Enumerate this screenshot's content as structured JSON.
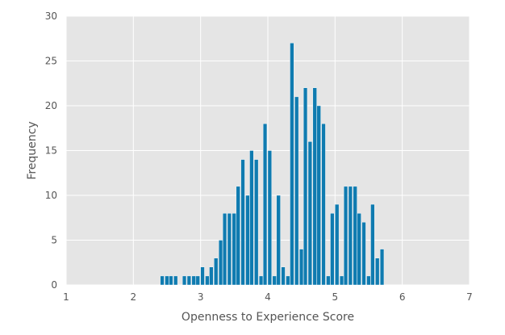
{
  "chart_data": {
    "type": "bar",
    "title": "",
    "xlabel": "Openness to Experience Score",
    "ylabel": "Frequency",
    "xlim": [
      1,
      7
    ],
    "ylim": [
      0,
      30
    ],
    "x_ticks": [
      "1",
      "2",
      "3",
      "4",
      "5",
      "6",
      "7"
    ],
    "y_ticks": [
      "0",
      "5",
      "10",
      "15",
      "20",
      "25",
      "30"
    ],
    "grid": true,
    "legend": "none",
    "colors": {
      "bar": "#0f7bb0",
      "background": "#e5e5e5",
      "grid": "#ffffff"
    },
    "bin_width": 0.0667,
    "bins": [
      {
        "x": 2.4,
        "y": 1
      },
      {
        "x": 2.47,
        "y": 1
      },
      {
        "x": 2.53,
        "y": 1
      },
      {
        "x": 2.6,
        "y": 1
      },
      {
        "x": 2.73,
        "y": 1
      },
      {
        "x": 2.8,
        "y": 1
      },
      {
        "x": 2.87,
        "y": 1
      },
      {
        "x": 2.93,
        "y": 1
      },
      {
        "x": 3.0,
        "y": 2
      },
      {
        "x": 3.07,
        "y": 1
      },
      {
        "x": 3.13,
        "y": 2
      },
      {
        "x": 3.2,
        "y": 3
      },
      {
        "x": 3.27,
        "y": 5
      },
      {
        "x": 3.33,
        "y": 8
      },
      {
        "x": 3.4,
        "y": 8
      },
      {
        "x": 3.47,
        "y": 8
      },
      {
        "x": 3.53,
        "y": 11
      },
      {
        "x": 3.6,
        "y": 14
      },
      {
        "x": 3.67,
        "y": 10
      },
      {
        "x": 3.73,
        "y": 15
      },
      {
        "x": 3.8,
        "y": 14
      },
      {
        "x": 3.87,
        "y": 1
      },
      {
        "x": 3.93,
        "y": 18
      },
      {
        "x": 4.0,
        "y": 15
      },
      {
        "x": 4.07,
        "y": 1
      },
      {
        "x": 4.13,
        "y": 10
      },
      {
        "x": 4.2,
        "y": 2
      },
      {
        "x": 4.27,
        "y": 1
      },
      {
        "x": 4.33,
        "y": 27
      },
      {
        "x": 4.4,
        "y": 21
      },
      {
        "x": 4.47,
        "y": 4
      },
      {
        "x": 4.53,
        "y": 22
      },
      {
        "x": 4.6,
        "y": 16
      },
      {
        "x": 4.67,
        "y": 22
      },
      {
        "x": 4.73,
        "y": 20
      },
      {
        "x": 4.8,
        "y": 18
      },
      {
        "x": 4.87,
        "y": 1
      },
      {
        "x": 4.93,
        "y": 8
      },
      {
        "x": 5.0,
        "y": 9
      },
      {
        "x": 5.07,
        "y": 1
      },
      {
        "x": 5.13,
        "y": 11
      },
      {
        "x": 5.2,
        "y": 11
      },
      {
        "x": 5.27,
        "y": 11
      },
      {
        "x": 5.33,
        "y": 8
      },
      {
        "x": 5.4,
        "y": 7
      },
      {
        "x": 5.47,
        "y": 1
      },
      {
        "x": 5.53,
        "y": 9
      },
      {
        "x": 5.6,
        "y": 3
      },
      {
        "x": 5.67,
        "y": 4
      }
    ]
  }
}
